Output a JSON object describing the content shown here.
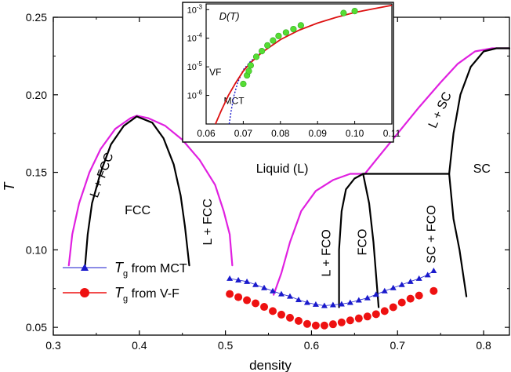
{
  "chart_data": {
    "type": "line",
    "xlabel": "density",
    "ylabel": "T",
    "xlim": [
      0.3,
      0.83
    ],
    "ylim": [
      0.045,
      0.25
    ],
    "xticks": [
      "0.3",
      "0.4",
      "0.5",
      "0.6",
      "0.7",
      "0.8"
    ],
    "yticks": [
      "0.05",
      "0.10",
      "0.15",
      "0.20",
      "0.25"
    ],
    "ytick_values": [
      0.05,
      0.1,
      0.15,
      0.2,
      0.25
    ],
    "xtick_values": [
      0.3,
      0.4,
      0.5,
      0.6,
      0.7,
      0.8
    ],
    "colors": {
      "coexistence": "#e020e0",
      "boundary": "#000000",
      "mct": "#1a1acc",
      "vf": "#ee1111"
    },
    "region_labels": [
      {
        "text": "L + FCC",
        "x": 0.357,
        "y": 0.148,
        "rotate": -70
      },
      {
        "text": "FCC",
        "x": 0.398,
        "y": 0.125,
        "rotate": 0
      },
      {
        "text": "L + FCC",
        "x": 0.48,
        "y": 0.118,
        "rotate": -90
      },
      {
        "text": "Liquid (L)",
        "x": 0.566,
        "y": 0.152,
        "rotate": 0
      },
      {
        "text": "L + FCO",
        "x": 0.618,
        "y": 0.098,
        "rotate": -90
      },
      {
        "text": "FCO",
        "x": 0.66,
        "y": 0.105,
        "rotate": -90
      },
      {
        "text": "SC + FCO",
        "x": 0.74,
        "y": 0.11,
        "rotate": -90
      },
      {
        "text": "L + SC",
        "x": 0.75,
        "y": 0.19,
        "rotate": -65
      },
      {
        "text": "SC",
        "x": 0.798,
        "y": 0.152,
        "rotate": 0
      }
    ],
    "series": [
      {
        "name": "fcc_coexistence",
        "role": "coexistence",
        "points": [
          [
            0.318,
            0.09
          ],
          [
            0.322,
            0.11
          ],
          [
            0.33,
            0.13
          ],
          [
            0.342,
            0.15
          ],
          [
            0.355,
            0.165
          ],
          [
            0.372,
            0.178
          ],
          [
            0.39,
            0.185
          ],
          [
            0.397,
            0.1865
          ],
          [
            0.41,
            0.185
          ],
          [
            0.43,
            0.18
          ],
          [
            0.45,
            0.171
          ],
          [
            0.47,
            0.158
          ],
          [
            0.488,
            0.142
          ],
          [
            0.498,
            0.125
          ],
          [
            0.505,
            0.11
          ],
          [
            0.508,
            0.09
          ]
        ]
      },
      {
        "name": "fcc_solid",
        "role": "boundary",
        "points": [
          [
            0.337,
            0.09
          ],
          [
            0.34,
            0.11
          ],
          [
            0.345,
            0.13
          ],
          [
            0.355,
            0.15
          ],
          [
            0.367,
            0.168
          ],
          [
            0.382,
            0.18
          ],
          [
            0.397,
            0.186
          ],
          [
            0.415,
            0.182
          ],
          [
            0.428,
            0.172
          ],
          [
            0.44,
            0.155
          ],
          [
            0.448,
            0.135
          ],
          [
            0.453,
            0.115
          ],
          [
            0.458,
            0.09
          ]
        ]
      },
      {
        "name": "fco_coexistence",
        "role": "coexistence",
        "points": [
          [
            0.556,
            0.071
          ],
          [
            0.565,
            0.085
          ],
          [
            0.575,
            0.105
          ],
          [
            0.588,
            0.125
          ],
          [
            0.605,
            0.138
          ],
          [
            0.625,
            0.145
          ],
          [
            0.645,
            0.149
          ],
          [
            0.662,
            0.149
          ]
        ]
      },
      {
        "name": "sc_coexistence",
        "role": "coexistence",
        "points": [
          [
            0.662,
            0.149
          ],
          [
            0.675,
            0.158
          ],
          [
            0.7,
            0.175
          ],
          [
            0.725,
            0.192
          ],
          [
            0.75,
            0.208
          ],
          [
            0.77,
            0.22
          ],
          [
            0.79,
            0.228
          ],
          [
            0.81,
            0.23
          ],
          [
            0.83,
            0.23
          ]
        ]
      },
      {
        "name": "fco_left",
        "role": "boundary",
        "points": [
          [
            0.632,
            0.063
          ],
          [
            0.632,
            0.1
          ],
          [
            0.635,
            0.125
          ],
          [
            0.64,
            0.139
          ],
          [
            0.65,
            0.146
          ],
          [
            0.66,
            0.149
          ]
        ]
      },
      {
        "name": "fco_right",
        "role": "boundary",
        "points": [
          [
            0.66,
            0.149
          ],
          [
            0.667,
            0.13
          ],
          [
            0.672,
            0.105
          ],
          [
            0.678,
            0.063
          ]
        ]
      },
      {
        "name": "triple_line",
        "role": "boundary",
        "points": [
          [
            0.66,
            0.149
          ],
          [
            0.76,
            0.149
          ]
        ]
      },
      {
        "name": "sc_boundary",
        "role": "boundary",
        "points": [
          [
            0.78,
            0.07
          ],
          [
            0.772,
            0.1
          ],
          [
            0.765,
            0.12
          ],
          [
            0.76,
            0.149
          ],
          [
            0.765,
            0.175
          ],
          [
            0.773,
            0.2
          ],
          [
            0.785,
            0.218
          ],
          [
            0.8,
            0.228
          ],
          [
            0.815,
            0.23
          ],
          [
            0.83,
            0.23
          ]
        ]
      },
      {
        "name": "T_g from MCT",
        "role": "mct",
        "marker": "triangle",
        "x": [
          0.505,
          0.515,
          0.525,
          0.535,
          0.545,
          0.555,
          0.565,
          0.575,
          0.585,
          0.595,
          0.605,
          0.615,
          0.625,
          0.635,
          0.645,
          0.655,
          0.665,
          0.675,
          0.685,
          0.695,
          0.705,
          0.715,
          0.725,
          0.735,
          0.742
        ],
        "y": [
          0.0815,
          0.0805,
          0.0795,
          0.0775,
          0.0755,
          0.0735,
          0.0715,
          0.07,
          0.0678,
          0.066,
          0.0648,
          0.064,
          0.0645,
          0.065,
          0.066,
          0.0675,
          0.069,
          0.0712,
          0.0735,
          0.0755,
          0.0775,
          0.0795,
          0.0815,
          0.0838,
          0.0865
        ]
      },
      {
        "name": "T_g from V-F",
        "role": "vf",
        "marker": "circle",
        "x": [
          0.505,
          0.515,
          0.525,
          0.535,
          0.545,
          0.555,
          0.565,
          0.575,
          0.585,
          0.595,
          0.605,
          0.615,
          0.625,
          0.635,
          0.645,
          0.655,
          0.665,
          0.675,
          0.685,
          0.695,
          0.705,
          0.715,
          0.725,
          0.742
        ],
        "y": [
          0.0715,
          0.0695,
          0.0675,
          0.0655,
          0.0632,
          0.0605,
          0.0582,
          0.0562,
          0.0542,
          0.0522,
          0.0512,
          0.0512,
          0.052,
          0.0532,
          0.0545,
          0.0558,
          0.057,
          0.0585,
          0.0605,
          0.063,
          0.066,
          0.0685,
          0.0705,
          0.0735
        ]
      }
    ],
    "legend": {
      "position": "bottom-left",
      "entries": [
        {
          "prefix": "T",
          "sub": "g",
          "suffix": " from MCT",
          "role": "mct",
          "marker": "triangle"
        },
        {
          "prefix": "T",
          "sub": "g",
          "suffix": " from V-F",
          "role": "vf",
          "marker": "circle"
        }
      ]
    },
    "inset": {
      "type": "scatter",
      "title": "D(T)",
      "yscale": "log",
      "xlim": [
        0.06,
        0.11
      ],
      "ylim_log10": [
        -7,
        -2.8
      ],
      "xticks": [
        "0.06",
        "0.07",
        "0.08",
        "0.09",
        "0.10",
        "0.11"
      ],
      "xtick_values": [
        0.06,
        0.07,
        0.08,
        0.09,
        0.1,
        0.11
      ],
      "yticks": [
        {
          "base": "10",
          "exp": "-3",
          "log10": -3
        },
        {
          "base": "10",
          "exp": "-4",
          "log10": -4
        },
        {
          "base": "10",
          "exp": "-5",
          "log10": -5
        },
        {
          "base": "10",
          "exp": "-6",
          "log10": -6
        }
      ],
      "annotations": [
        {
          "text": "VF",
          "x": 0.0625,
          "log10y": -5.3
        },
        {
          "text": "MCT",
          "x": 0.0675,
          "log10y": -6.3
        }
      ],
      "points": {
        "x": [
          0.07,
          0.071,
          0.0715,
          0.072,
          0.0735,
          0.075,
          0.0765,
          0.078,
          0.0795,
          0.0815,
          0.0835,
          0.0855,
          0.097,
          0.1
        ],
        "log10y": [
          -5.6,
          -5.3,
          -5.15,
          -4.95,
          -4.65,
          -4.45,
          -4.25,
          -4.08,
          -3.92,
          -3.8,
          -3.68,
          -3.55,
          -3.12,
          -3.05
        ]
      },
      "vf_curve": {
        "x": [
          0.0625,
          0.064,
          0.066,
          0.068,
          0.07,
          0.072,
          0.075,
          0.08,
          0.085,
          0.09,
          0.095,
          0.1,
          0.105,
          0.11
        ],
        "log10y": [
          -7.0,
          -6.55,
          -6.0,
          -5.55,
          -5.15,
          -4.85,
          -4.5,
          -4.05,
          -3.72,
          -3.47,
          -3.27,
          -3.1,
          -2.97,
          -2.85
        ]
      },
      "mct_curve": {
        "x": [
          0.0662,
          0.0668,
          0.0675,
          0.0685,
          0.07,
          0.072,
          0.075,
          0.08
        ],
        "log10y": [
          -7.0,
          -6.5,
          -6.0,
          -5.55,
          -5.1,
          -4.8,
          -4.48,
          -4.05
        ]
      }
    }
  }
}
